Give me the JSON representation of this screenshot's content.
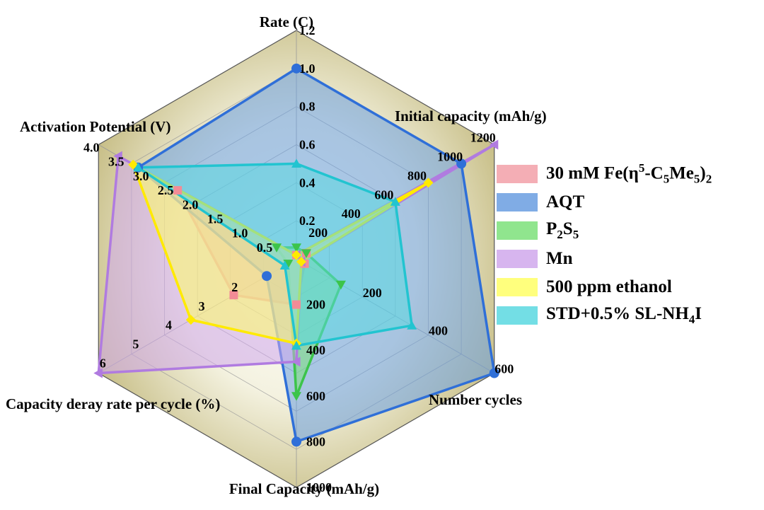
{
  "chart_data": {
    "type": "radar",
    "axes": [
      {
        "label": "Rate (C)",
        "max": 1.2,
        "ticks": [
          "0.2",
          "0.4",
          "0.6",
          "0.8",
          "1.0",
          "1.2"
        ],
        "tick_values": [
          0.2,
          0.4,
          0.6,
          0.8,
          1.0,
          1.2
        ]
      },
      {
        "label": "Initial capacity (mAh/g)",
        "max": 1200,
        "ticks": [
          "200",
          "400",
          "600",
          "800",
          "1000",
          "1200"
        ],
        "tick_values": [
          200,
          400,
          600,
          800,
          1000,
          1200
        ]
      },
      {
        "label": "Number cycles",
        "max": 600,
        "ticks": [
          "200",
          "400",
          "600"
        ],
        "tick_values": [
          200,
          400,
          600
        ]
      },
      {
        "label": "Final Capacity (mAh/g)",
        "max": 1000,
        "ticks": [
          "200",
          "400",
          "600",
          "800",
          "1000"
        ],
        "tick_values": [
          200,
          400,
          600,
          800,
          1000
        ]
      },
      {
        "label": "Capacity deray rate per cycle (%)",
        "max": 6,
        "ticks": [
          "2",
          "3",
          "4",
          "5",
          "6"
        ],
        "tick_values": [
          2,
          3,
          4,
          5,
          6
        ]
      },
      {
        "label": "Activation Potential (V)",
        "max": 4.0,
        "ticks": [
          "0.5",
          "1.0",
          "1.5",
          "2.0",
          "2.5",
          "3.0",
          "3.5",
          "4.0"
        ],
        "tick_values": [
          0.5,
          1.0,
          1.5,
          2.0,
          2.5,
          3.0,
          3.5,
          4.0
        ]
      }
    ],
    "series": [
      {
        "name": "30 mM Fe(η5-C5Me5)2",
        "color": "#f2a0a8",
        "stroke": "#f28c96",
        "marker": "square",
        "values": [
          0.02,
          60,
          25,
          200,
          1.9,
          2.4
        ]
      },
      {
        "name": "AQT",
        "color": "#6a9ee0",
        "stroke": "#2f6fd8",
        "marker": "circle",
        "values": [
          1.0,
          1000,
          600,
          800,
          0.9,
          3.2
        ]
      },
      {
        "name": "P2S5",
        "color": "#7de07a",
        "stroke": "#3cc44a",
        "marker": "triangle-down",
        "values": [
          0.06,
          60,
          135,
          600,
          0.25,
          0.4
        ]
      },
      {
        "name": "Mn",
        "color": "#d0a8ec",
        "stroke": "#b07be0",
        "marker": "triangle-left",
        "values": [
          0.02,
          1200,
          15,
          450,
          6.0,
          3.6
        ]
      },
      {
        "name": "500 ppm ethanol",
        "color": "#ffff66",
        "stroke": "#ffea00",
        "marker": "diamond",
        "values": [
          0.02,
          800,
          15,
          370,
          3.2,
          3.3
        ]
      },
      {
        "name": "STD+0.5% SL-NH4I",
        "color": "#5ad8e0",
        "stroke": "#22c4d0",
        "marker": "triangle-up",
        "values": [
          0.5,
          600,
          350,
          380,
          0.35,
          3.2
        ]
      }
    ],
    "legend": {
      "placement": "right"
    }
  },
  "legend_items": [
    {
      "name": "30 mM Fe(η5-C5Me5)2"
    },
    {
      "name": "AQT"
    },
    {
      "name": "P2S5"
    },
    {
      "name": "Mn"
    },
    {
      "name": "500 ppm ethanol"
    },
    {
      "name": "STD+0.5% SL-NH4I"
    }
  ]
}
